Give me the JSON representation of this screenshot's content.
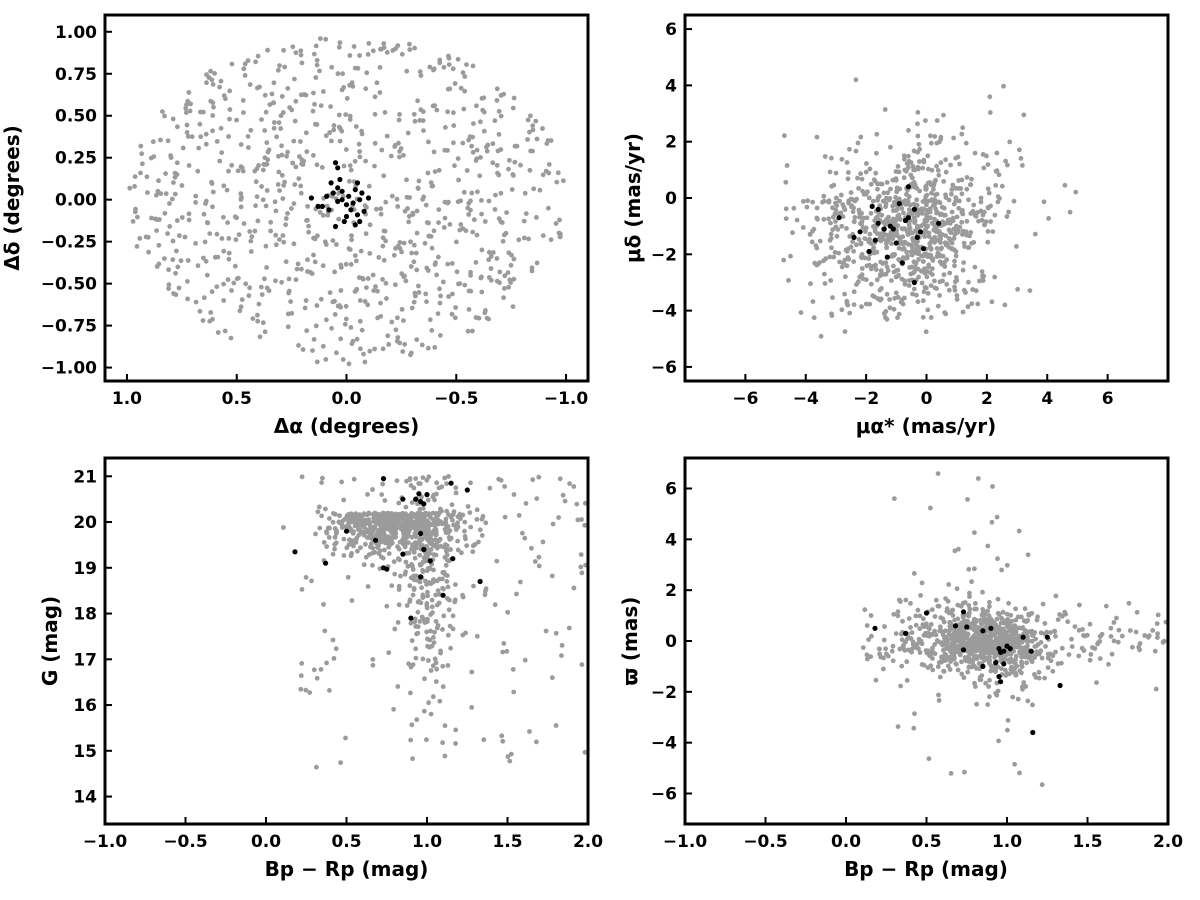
{
  "colors": {
    "field_stars": "#9b9b9b",
    "members": "#000000",
    "axes": "#000000",
    "background": "#ffffff"
  },
  "chart_data": [
    {
      "id": "sky",
      "type": "scatter",
      "xlabel": "Δα (degrees)",
      "ylabel": "Δδ (degrees)",
      "xlim": [
        1.1,
        -1.1
      ],
      "ylim": [
        -1.08,
        1.1
      ],
      "x_reversed": true,
      "xticks": [
        1.0,
        0.5,
        0.0,
        -0.5,
        -1.0
      ],
      "xtick_labels": [
        "1.0",
        "0.5",
        "0.0",
        "−0.5",
        "−1.0"
      ],
      "yticks": [
        -1.0,
        -0.75,
        -0.5,
        -0.25,
        0.0,
        0.25,
        0.5,
        0.75,
        1.0
      ],
      "ytick_labels": [
        "−1.00",
        "−0.75",
        "−0.50",
        "−0.25",
        "0.00",
        "0.25",
        "0.50",
        "0.75",
        "1.00"
      ],
      "grid": false,
      "series": [
        {
          "role": "field",
          "generator": {
            "kind": "disk",
            "center": [
              0,
              0
            ],
            "rx": 1.0,
            "ry": 0.98,
            "n": 900,
            "seed": 11
          }
        },
        {
          "role": "members",
          "points": [
            [
              0.05,
              0.22
            ],
            [
              0.04,
              0.19
            ],
            [
              0.03,
              0.12
            ],
            [
              0.07,
              0.1
            ],
            [
              0.04,
              0.07
            ],
            [
              0.06,
              0.04
            ],
            [
              -0.01,
              0.02
            ],
            [
              0.02,
              0.05
            ],
            [
              -0.05,
              0.1
            ],
            [
              -0.04,
              0.06
            ],
            [
              -0.07,
              0.04
            ],
            [
              -0.06,
              0.0
            ],
            [
              -0.03,
              -0.02
            ],
            [
              0.0,
              -0.03
            ],
            [
              0.04,
              -0.01
            ],
            [
              0.09,
              0.02
            ],
            [
              0.11,
              -0.04
            ],
            [
              0.08,
              -0.06
            ],
            [
              -0.02,
              -0.06
            ],
            [
              -0.08,
              -0.07
            ],
            [
              -0.05,
              -0.09
            ],
            [
              0.0,
              -0.1
            ],
            [
              -0.06,
              -0.13
            ],
            [
              0.01,
              -0.13
            ],
            [
              0.05,
              -0.16
            ],
            [
              -0.04,
              -0.15
            ],
            [
              0.16,
              0.01
            ],
            [
              0.13,
              -0.04
            ],
            [
              -0.1,
              0.01
            ],
            [
              0.02,
              0.0
            ]
          ]
        }
      ]
    },
    {
      "id": "proper-motion",
      "type": "scatter",
      "xlabel": "μα* (mas/yr)",
      "ylabel": "μδ (mas/yr)",
      "xlim": [
        -8,
        8
      ],
      "ylim": [
        -6.5,
        6.5
      ],
      "xticks": [
        -6,
        -4,
        -2,
        0,
        2,
        4,
        6
      ],
      "xtick_labels": [
        "−6",
        "−4",
        "−2",
        "0",
        "2",
        "4",
        "6"
      ],
      "yticks": [
        -6,
        -4,
        -2,
        0,
        2,
        4,
        6
      ],
      "ytick_labels": [
        "−6",
        "−4",
        "−2",
        "0",
        "2",
        "4",
        "6"
      ],
      "grid": false,
      "series": [
        {
          "role": "field",
          "generator": {
            "kind": "gaussian-mix",
            "n": 900,
            "seed": 23,
            "components": [
              {
                "w": 0.45,
                "mx": -1.2,
                "my": -1.4,
                "sx": 1.5,
                "sy": 1.3
              },
              {
                "w": 0.35,
                "mx": -0.2,
                "my": -1.0,
                "sx": 0.9,
                "sy": 1.5
              },
              {
                "w": 0.2,
                "mx": 0.0,
                "my": -0.8,
                "sx": 2.3,
                "sy": 2.0
              }
            ],
            "clip": [
              -5.0,
              5.0,
              -5.0,
              4.6
            ]
          }
        },
        {
          "role": "members",
          "points": [
            [
              -2.9,
              -0.7
            ],
            [
              -2.4,
              -1.4
            ],
            [
              -2.2,
              -1.2
            ],
            [
              -1.9,
              -1.9
            ],
            [
              -1.8,
              -0.3
            ],
            [
              -1.7,
              -1.5
            ],
            [
              -1.6,
              -0.4
            ],
            [
              -1.6,
              -0.9
            ],
            [
              -1.4,
              -1.1
            ],
            [
              -1.3,
              -2.1
            ],
            [
              -1.2,
              -1.0
            ],
            [
              -1.0,
              -1.6
            ],
            [
              -0.9,
              -0.2
            ],
            [
              -0.8,
              -2.3
            ],
            [
              -0.7,
              -0.8
            ],
            [
              -0.6,
              0.4
            ],
            [
              -0.4,
              -0.4
            ],
            [
              -0.4,
              -3.0
            ],
            [
              -0.2,
              -1.2
            ],
            [
              -0.1,
              -1.8
            ],
            [
              0.4,
              -0.9
            ],
            [
              -1.1,
              -1.1
            ],
            [
              -0.6,
              -0.7
            ],
            [
              -0.3,
              -1.4
            ]
          ]
        }
      ]
    },
    {
      "id": "cmd",
      "type": "scatter",
      "xlabel": "Bp − Rp (mag)",
      "ylabel": "G (mag)",
      "xlim": [
        -1.0,
        2.0
      ],
      "ylim": [
        13.4,
        21.4
      ],
      "xticks": [
        -1.0,
        -0.5,
        0.0,
        0.5,
        1.0,
        1.5,
        2.0
      ],
      "xtick_labels": [
        "−1.0",
        "−0.5",
        "0.0",
        "0.5",
        "1.0",
        "1.5",
        "2.0"
      ],
      "yticks": [
        14,
        15,
        16,
        17,
        18,
        19,
        20,
        21
      ],
      "ytick_labels": [
        "14",
        "15",
        "16",
        "17",
        "18",
        "19",
        "20",
        "21"
      ],
      "grid": false,
      "series": [
        {
          "role": "field",
          "generator": {
            "kind": "cmd",
            "n": 950,
            "seed": 37
          }
        },
        {
          "role": "members",
          "points": [
            [
              0.5,
              19.8
            ],
            [
              0.18,
              19.35
            ],
            [
              0.37,
              19.1
            ],
            [
              0.73,
              20.95
            ],
            [
              0.73,
              19.0
            ],
            [
              0.68,
              19.6
            ],
            [
              0.75,
              18.97
            ],
            [
              0.85,
              20.5
            ],
            [
              0.85,
              19.3
            ],
            [
              0.9,
              17.9
            ],
            [
              0.93,
              20.5
            ],
            [
              0.96,
              20.45
            ],
            [
              0.96,
              19.75
            ],
            [
              0.96,
              18.8
            ],
            [
              0.98,
              20.4
            ],
            [
              0.98,
              19.4
            ],
            [
              1.0,
              20.6
            ],
            [
              1.02,
              19.15
            ],
            [
              1.1,
              18.4
            ],
            [
              1.15,
              20.85
            ],
            [
              1.16,
              19.2
            ],
            [
              1.25,
              20.7
            ],
            [
              1.33,
              18.7
            ],
            [
              0.95,
              20.62
            ]
          ]
        }
      ]
    },
    {
      "id": "parallax",
      "type": "scatter",
      "xlabel": "Bp − Rp (mag)",
      "ylabel": "ϖ (mas)",
      "xlim": [
        -1.0,
        2.0
      ],
      "ylim": [
        -7.2,
        7.2
      ],
      "xticks": [
        -1.0,
        -0.5,
        0.0,
        0.5,
        1.0,
        1.5,
        2.0
      ],
      "xtick_labels": [
        "−1.0",
        "−0.5",
        "0.0",
        "0.5",
        "1.0",
        "1.5",
        "2.0"
      ],
      "yticks": [
        -6,
        -4,
        -2,
        0,
        2,
        4,
        6
      ],
      "ytick_labels": [
        "−6",
        "−4",
        "−2",
        "0",
        "2",
        "4",
        "6"
      ],
      "grid": false,
      "series": [
        {
          "role": "field",
          "generator": {
            "kind": "parallax",
            "n": 950,
            "seed": 53
          }
        },
        {
          "role": "members",
          "points": [
            [
              0.18,
              0.5
            ],
            [
              0.37,
              0.3
            ],
            [
              0.5,
              1.1
            ],
            [
              0.73,
              1.15
            ],
            [
              0.73,
              -0.35
            ],
            [
              0.68,
              0.6
            ],
            [
              0.75,
              0.55
            ],
            [
              0.85,
              0.4
            ],
            [
              0.85,
              -1.0
            ],
            [
              0.9,
              0.5
            ],
            [
              0.93,
              -0.85
            ],
            [
              0.95,
              -1.4
            ],
            [
              0.96,
              -1.6
            ],
            [
              0.96,
              -0.45
            ],
            [
              0.98,
              -0.9
            ],
            [
              0.98,
              -0.4
            ],
            [
              1.0,
              -0.2
            ],
            [
              1.02,
              -0.3
            ],
            [
              1.1,
              0.15
            ],
            [
              1.15,
              -0.4
            ],
            [
              1.16,
              -3.6
            ],
            [
              1.25,
              0.15
            ],
            [
              1.33,
              -1.75
            ],
            [
              0.95,
              -0.3
            ]
          ]
        }
      ]
    }
  ]
}
